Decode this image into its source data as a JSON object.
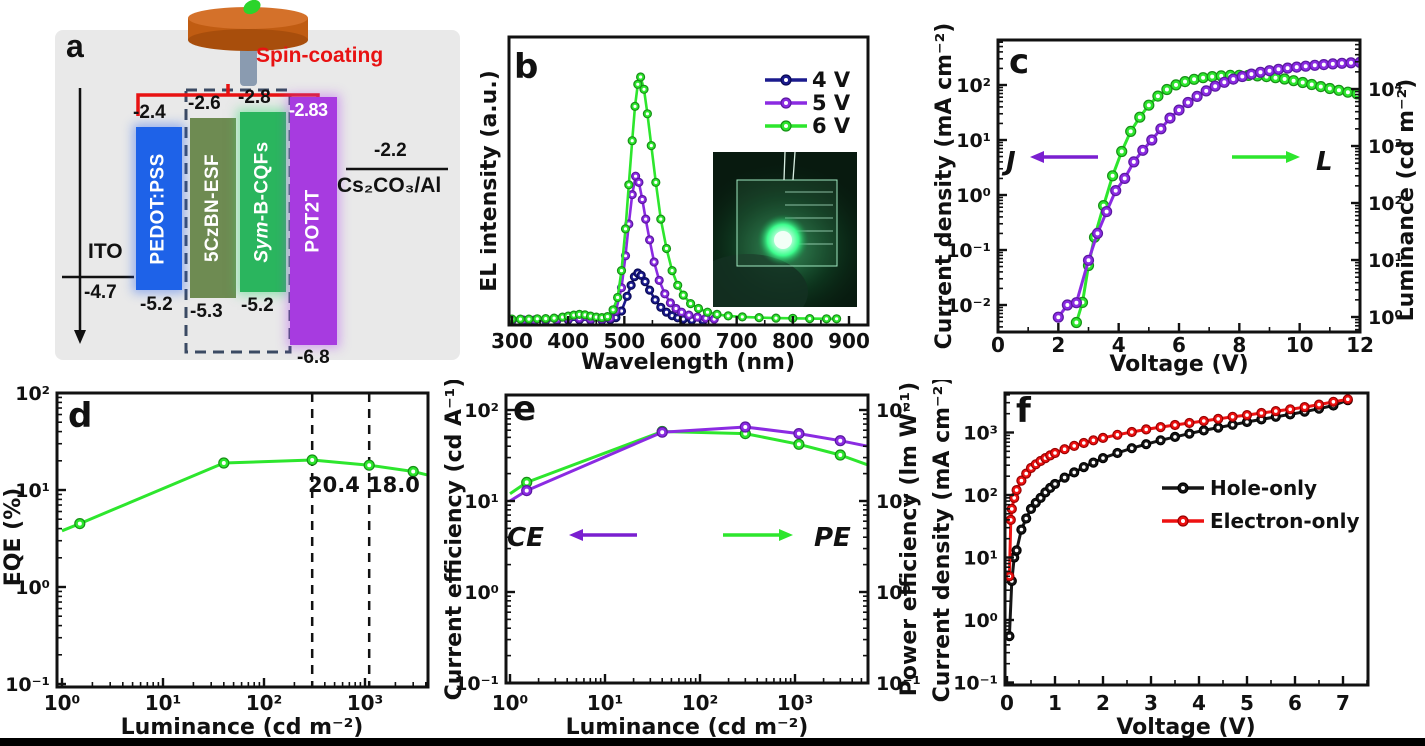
{
  "figure": {
    "background": "#ffffff",
    "bottom_bar_color": "#000000"
  },
  "panel_a": {
    "label": "a",
    "spin_coating": "Spin-coating",
    "ito": {
      "name": "ITO",
      "level": "-4.7"
    },
    "cathode": {
      "name": "Cs₂CO₃/Al",
      "level": "-2.2"
    },
    "layers": [
      {
        "name": "PEDOT:PSS",
        "lumo": "-2.4",
        "homo": "-5.2",
        "color": "#1e62e8"
      },
      {
        "name": "5CzBN-ESF",
        "lumo": "-2.6",
        "homo": "-5.3",
        "color": "#6e8b52"
      },
      {
        "name": "Sym-B-CQFs",
        "lumo": "-2.8",
        "homo": "-5.2",
        "color": "#2ab55e"
      },
      {
        "name": "POT2T",
        "lumo": "-2.83",
        "homo": "-6.8",
        "color": "#a73be0"
      }
    ]
  },
  "chart_data": [
    {
      "id": "b",
      "type": "line",
      "panel_label": "b",
      "xlabel": "Wavelength (nm)",
      "left_axis": {
        "label": "EL intensity (a.u.)",
        "ticks": []
      },
      "xlim": [
        300,
        934
      ],
      "ylim": [
        0,
        1.16
      ],
      "xticks": [
        [
          300,
          "300"
        ],
        [
          400,
          "400"
        ],
        [
          500,
          "500"
        ],
        [
          600,
          "600"
        ],
        [
          700,
          "700"
        ],
        [
          800,
          "800"
        ],
        [
          900,
          "900"
        ]
      ],
      "legend": true,
      "series": [
        {
          "name": "4 V",
          "color": "#1b1b8e",
          "edge": "#0a0a55",
          "x": [
            300,
            320,
            340,
            360,
            380,
            400,
            420,
            440,
            460,
            475,
            485,
            495,
            505,
            512,
            518,
            524,
            530,
            537,
            545,
            555,
            565,
            575,
            585,
            595,
            605,
            620,
            640
          ],
          "y": [
            0.006,
            0.006,
            0.006,
            0.007,
            0.007,
            0.009,
            0.01,
            0.008,
            0.008,
            0.01,
            0.018,
            0.045,
            0.105,
            0.15,
            0.185,
            0.2,
            0.19,
            0.165,
            0.13,
            0.09,
            0.06,
            0.04,
            0.026,
            0.017,
            0.012,
            0.008,
            0.006
          ]
        },
        {
          "name": "5 V",
          "color": "#8b2be2",
          "edge": "#5a18a0",
          "x": [
            300,
            320,
            340,
            360,
            380,
            400,
            420,
            440,
            460,
            475,
            485,
            495,
            502,
            508,
            514,
            520,
            526,
            532,
            538,
            545,
            553,
            562,
            572,
            582,
            592,
            602,
            615,
            630,
            645,
            660
          ],
          "y": [
            0.008,
            0.008,
            0.008,
            0.009,
            0.01,
            0.013,
            0.014,
            0.011,
            0.011,
            0.016,
            0.045,
            0.14,
            0.27,
            0.4,
            0.52,
            0.595,
            0.57,
            0.5,
            0.42,
            0.335,
            0.245,
            0.17,
            0.115,
            0.078,
            0.055,
            0.04,
            0.028,
            0.02,
            0.015,
            0.012
          ]
        },
        {
          "name": "6 V",
          "color": "#2de62d",
          "edge": "#169016",
          "x": [
            300,
            315,
            330,
            345,
            360,
            375,
            390,
            400,
            410,
            420,
            430,
            440,
            450,
            460,
            470,
            480,
            488,
            495,
            502,
            508,
            514,
            519,
            524,
            529,
            535,
            541,
            548,
            556,
            565,
            575,
            585,
            595,
            605,
            618,
            632,
            648,
            665,
            685,
            710,
            740,
            770,
            800,
            830,
            860,
            878
          ],
          "y": [
            0.012,
            0.012,
            0.012,
            0.013,
            0.014,
            0.016,
            0.02,
            0.024,
            0.028,
            0.031,
            0.029,
            0.024,
            0.02,
            0.018,
            0.022,
            0.05,
            0.1,
            0.21,
            0.38,
            0.56,
            0.74,
            0.88,
            0.97,
            1.0,
            0.95,
            0.85,
            0.72,
            0.57,
            0.42,
            0.3,
            0.21,
            0.15,
            0.11,
            0.075,
            0.055,
            0.04,
            0.031,
            0.025,
            0.021,
            0.018,
            0.016,
            0.015,
            0.014,
            0.013,
            0.013
          ]
        }
      ],
      "inset": "green-emitting OLED device photograph"
    },
    {
      "id": "c",
      "type": "dual_axis_line",
      "panel_label": "c",
      "xlabel": "Voltage (V)",
      "xlim": [
        0,
        12
      ],
      "xticks": [
        [
          0,
          "0"
        ],
        [
          2,
          "2"
        ],
        [
          4,
          "4"
        ],
        [
          6,
          "6"
        ],
        [
          8,
          "8"
        ],
        [
          10,
          "10"
        ],
        [
          12,
          "12"
        ]
      ],
      "left_axis": {
        "label": "Current density (mA cm⁻²)",
        "ticks": [
          [
            0.01,
            "10⁻²"
          ],
          [
            0.1,
            "10⁻¹"
          ],
          [
            1,
            "10⁰"
          ],
          [
            10,
            "10¹"
          ],
          [
            100,
            "10²"
          ]
        ]
      },
      "right_axis": {
        "label": "Luminance (cd m⁻²)",
        "ticks": [
          [
            1,
            "10⁰"
          ],
          [
            10,
            "10¹"
          ],
          [
            100,
            "10²"
          ],
          [
            1000,
            "10³"
          ],
          [
            10000,
            "10⁴"
          ]
        ]
      },
      "annotations": [
        {
          "text": "J",
          "arrow": "left",
          "color": "#7a1fd0"
        },
        {
          "text": "L",
          "arrow": "right",
          "color": "#2de62d"
        }
      ],
      "series": [
        {
          "name": "L",
          "axis": "right",
          "color": "#2de62d",
          "edge": "#169016",
          "x": [
            2.6,
            2.8,
            3.0,
            3.2,
            3.5,
            3.8,
            4.1,
            4.4,
            4.7,
            5.0,
            5.3,
            5.6,
            5.9,
            6.2,
            6.5,
            6.8,
            7.1,
            7.4,
            7.7,
            8.0,
            8.3,
            8.6,
            8.9,
            9.2,
            9.5,
            9.8,
            10.1,
            10.4,
            10.7,
            11.0,
            11.3,
            11.6,
            11.9
          ],
          "y": [
            0.8,
            1.8,
            8,
            25,
            90,
            300,
            800,
            1800,
            3200,
            5200,
            7500,
            9800,
            11800,
            13500,
            14800,
            15800,
            16500,
            17000,
            17300,
            17400,
            17300,
            17000,
            16500,
            15800,
            15000,
            14000,
            13000,
            12000,
            11000,
            10200,
            9500,
            8800,
            8200
          ]
        },
        {
          "name": "J",
          "axis": "left",
          "color": "#8b2be2",
          "edge": "#5a18a0",
          "x": [
            2.0,
            2.3,
            2.6,
            3.0,
            3.3,
            3.6,
            3.9,
            4.2,
            4.5,
            4.8,
            5.1,
            5.4,
            5.7,
            6.0,
            6.3,
            6.6,
            6.9,
            7.2,
            7.5,
            7.8,
            8.1,
            8.4,
            8.7,
            9.0,
            9.3,
            9.6,
            9.9,
            10.2,
            10.5,
            10.8,
            11.1,
            11.4,
            11.7,
            12.0
          ],
          "y": [
            0.006,
            0.01,
            0.011,
            0.065,
            0.2,
            0.5,
            1.2,
            2.0,
            4.0,
            6.5,
            10,
            16,
            25,
            35,
            48,
            62,
            78,
            95,
            112,
            128,
            143,
            158,
            170,
            182,
            193,
            203,
            212,
            220,
            228,
            235,
            242,
            248,
            253,
            258
          ]
        }
      ]
    },
    {
      "id": "d",
      "type": "line",
      "panel_label": "d",
      "xlabel": "Luminance (cd m⁻²)",
      "xlim": [
        1,
        5200
      ],
      "xticks": [
        [
          1,
          "10⁰"
        ],
        [
          10,
          "10¹"
        ],
        [
          100,
          "10²"
        ],
        [
          1000,
          "10³"
        ]
      ],
      "left_axis": {
        "label": "EQE (%)",
        "ticks": [
          [
            0.1,
            "10⁻¹"
          ],
          [
            1,
            "10⁰"
          ],
          [
            10,
            "10¹"
          ],
          [
            100,
            "10²"
          ]
        ]
      },
      "vlines": [
        300,
        1100
      ],
      "point_labels": [
        "20.4",
        "18.0"
      ],
      "series": [
        {
          "name": "EQE",
          "color": "#2de62d",
          "edge": "#169016",
          "marker_skip_ends": true,
          "x": [
            1.0,
            1.5,
            40,
            300,
            1100,
            3000,
            5200
          ],
          "y": [
            3.8,
            4.5,
            19,
            20.4,
            18.0,
            15.5,
            13.5
          ]
        }
      ]
    },
    {
      "id": "e",
      "type": "dual_axis_line",
      "panel_label": "e",
      "xlabel": "Luminance (cd m⁻²)",
      "xlim": [
        1,
        5800
      ],
      "xticks": [
        [
          1,
          "10⁰"
        ],
        [
          10,
          "10¹"
        ],
        [
          100,
          "10²"
        ],
        [
          1000,
          "10³"
        ]
      ],
      "left_axis": {
        "label": "Current efficiency (cd A⁻¹)",
        "ticks": [
          [
            0.1,
            "10⁻¹"
          ],
          [
            1,
            "10⁰"
          ],
          [
            10,
            "10¹"
          ],
          [
            100,
            "10²"
          ]
        ]
      },
      "right_axis": {
        "label": "Power efficiency (lm W⁻¹)",
        "ticks": [
          [
            0.1,
            "10⁻¹"
          ],
          [
            1,
            "10⁰"
          ],
          [
            10,
            "10¹"
          ],
          [
            100,
            "10²"
          ]
        ]
      },
      "annotations": [
        {
          "text": "CE",
          "arrow": "left",
          "color": "#7a1fd0"
        },
        {
          "text": "PE",
          "arrow": "right",
          "color": "#2de62d"
        }
      ],
      "series": [
        {
          "name": "PE",
          "color": "#2de62d",
          "edge": "#169016",
          "marker_skip_ends": true,
          "x": [
            1.0,
            1.5,
            40,
            300,
            1100,
            3000,
            5800
          ],
          "y": [
            12,
            16,
            58,
            55,
            42,
            32,
            25
          ]
        },
        {
          "name": "CE",
          "color": "#8b2be2",
          "edge": "#5a18a0",
          "marker_skip_ends": true,
          "x": [
            1.0,
            1.5,
            40,
            300,
            1100,
            3000,
            5800
          ],
          "y": [
            10,
            13,
            57,
            65,
            55,
            46,
            40
          ]
        }
      ]
    },
    {
      "id": "f",
      "type": "line",
      "panel_label": "f",
      "xlabel": "Voltage (V)",
      "xlim": [
        0,
        7.52
      ],
      "xticks": [
        [
          0,
          "0"
        ],
        [
          1,
          "1"
        ],
        [
          2,
          "2"
        ],
        [
          3,
          "3"
        ],
        [
          4,
          "4"
        ],
        [
          5,
          "5"
        ],
        [
          6,
          "6"
        ],
        [
          7,
          "7"
        ]
      ],
      "left_axis": {
        "label": "Current density (mA cm⁻²)",
        "ticks": [
          [
            0.1,
            "10⁻¹"
          ],
          [
            1,
            "10⁰"
          ],
          [
            10,
            "10¹"
          ],
          [
            100,
            "10²"
          ],
          [
            1000,
            "10³"
          ]
        ]
      },
      "legend": true,
      "series": [
        {
          "name": "Hole-only",
          "color": "#161616",
          "edge": "#000000",
          "x": [
            0.05,
            0.1,
            0.15,
            0.2,
            0.3,
            0.4,
            0.5,
            0.6,
            0.7,
            0.8,
            0.9,
            1.0,
            1.2,
            1.4,
            1.6,
            1.8,
            2.0,
            2.3,
            2.6,
            2.9,
            3.2,
            3.5,
            3.8,
            4.1,
            4.4,
            4.7,
            5.0,
            5.3,
            5.6,
            5.9,
            6.2,
            6.5,
            6.8,
            7.1
          ],
          "y": [
            0.55,
            4.2,
            10,
            13,
            28,
            42,
            60,
            75,
            90,
            110,
            130,
            150,
            190,
            230,
            280,
            330,
            390,
            470,
            560,
            650,
            750,
            850,
            960,
            1080,
            1200,
            1330,
            1470,
            1620,
            1780,
            1950,
            2150,
            2400,
            2700,
            3300
          ]
        },
        {
          "name": "Electron-only",
          "color": "#ee1111",
          "edge": "#990000",
          "x": [
            0.05,
            0.08,
            0.1,
            0.15,
            0.2,
            0.3,
            0.4,
            0.5,
            0.6,
            0.7,
            0.8,
            0.9,
            1.0,
            1.2,
            1.4,
            1.6,
            1.8,
            2.0,
            2.3,
            2.6,
            2.9,
            3.2,
            3.5,
            3.8,
            4.1,
            4.4,
            4.7,
            5.0,
            5.3,
            5.6,
            5.9,
            6.2,
            6.5,
            6.8,
            7.1
          ],
          "y": [
            5,
            40,
            60,
            90,
            120,
            170,
            220,
            270,
            310,
            350,
            390,
            430,
            470,
            540,
            610,
            680,
            750,
            820,
            920,
            1020,
            1120,
            1220,
            1320,
            1420,
            1530,
            1650,
            1780,
            1900,
            2050,
            2200,
            2350,
            2550,
            2800,
            3100,
            3400
          ]
        }
      ]
    }
  ]
}
